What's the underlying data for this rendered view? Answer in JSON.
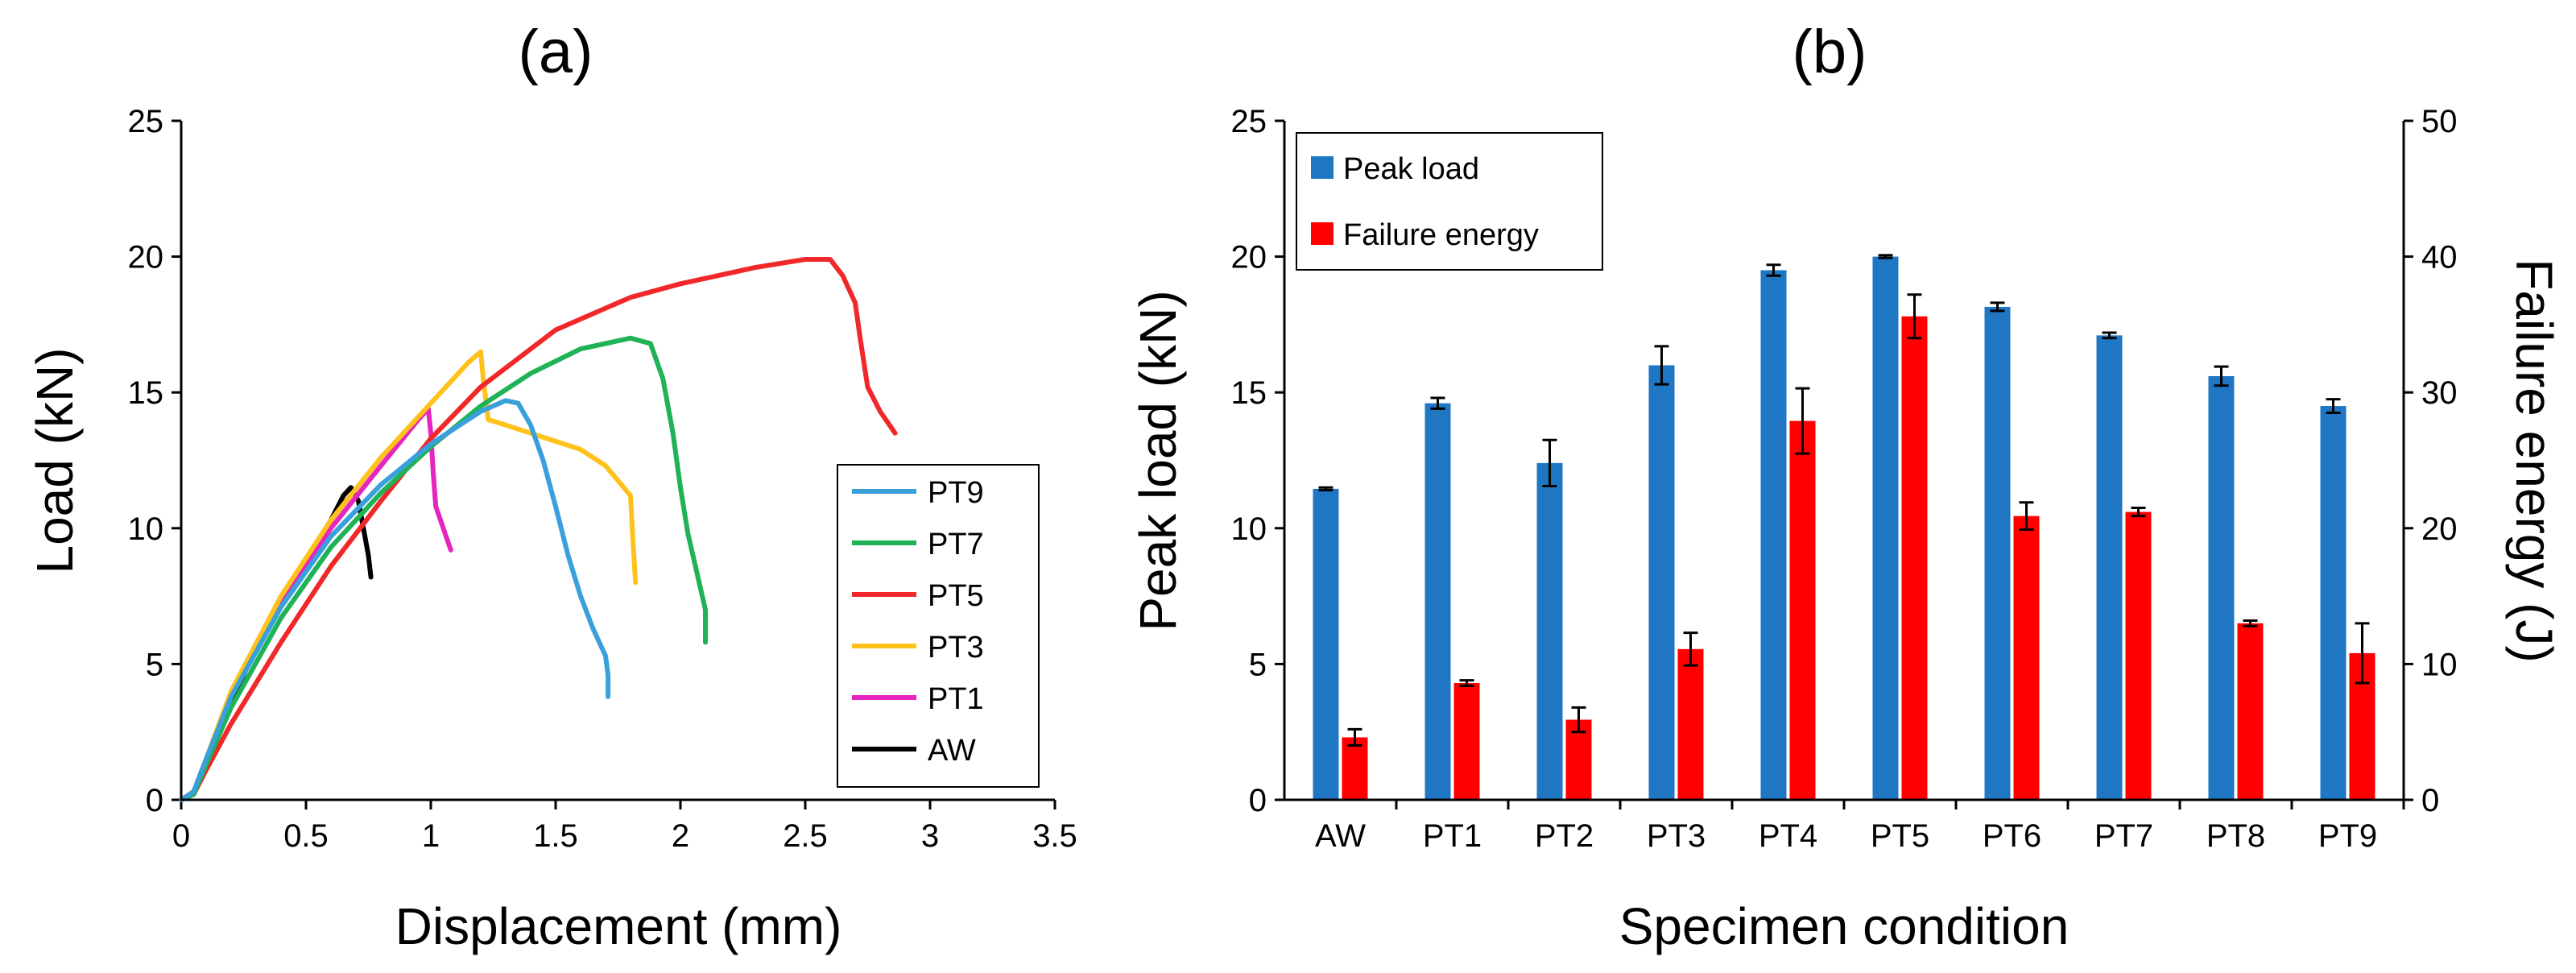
{
  "chart_data": [
    {
      "type": "line",
      "title": "(a)",
      "xlabel": "Displacement (mm)",
      "ylabel": "Load (kN)",
      "xlim": [
        0,
        3.5
      ],
      "ylim": [
        0,
        25
      ],
      "xticks": [
        0,
        0.5,
        1,
        1.5,
        2,
        2.5,
        3,
        3.5
      ],
      "xtick_labels": [
        "0",
        "0.5",
        "1",
        "1.5",
        "2",
        "2.5",
        "3",
        "3.5"
      ],
      "yticks": [
        0,
        5,
        10,
        15,
        20,
        25
      ],
      "ytick_labels": [
        "0",
        "5",
        "10",
        "15",
        "20",
        "25"
      ],
      "legend_position": "bottom-right",
      "series": [
        {
          "name": "PT9",
          "color": "#3aa0dc",
          "points": [
            [
              0,
              0
            ],
            [
              0.05,
              0.3
            ],
            [
              0.1,
              1.5
            ],
            [
              0.2,
              3.8
            ],
            [
              0.4,
              7.1
            ],
            [
              0.6,
              9.7
            ],
            [
              0.8,
              11.6
            ],
            [
              1.0,
              13.1
            ],
            [
              1.2,
              14.3
            ],
            [
              1.3,
              14.7
            ],
            [
              1.35,
              14.6
            ],
            [
              1.4,
              13.8
            ],
            [
              1.45,
              12.5
            ],
            [
              1.5,
              10.8
            ],
            [
              1.55,
              9.0
            ],
            [
              1.6,
              7.5
            ],
            [
              1.65,
              6.3
            ],
            [
              1.7,
              5.3
            ],
            [
              1.71,
              4.6
            ],
            [
              1.71,
              3.8
            ]
          ]
        },
        {
          "name": "PT7",
          "color": "#1fb256",
          "points": [
            [
              0,
              0
            ],
            [
              0.05,
              0.2
            ],
            [
              0.1,
              1.3
            ],
            [
              0.2,
              3.4
            ],
            [
              0.4,
              6.7
            ],
            [
              0.6,
              9.3
            ],
            [
              0.8,
              11.3
            ],
            [
              1.0,
              13.0
            ],
            [
              1.2,
              14.5
            ],
            [
              1.4,
              15.7
            ],
            [
              1.6,
              16.6
            ],
            [
              1.8,
              17.0
            ],
            [
              1.88,
              16.8
            ],
            [
              1.93,
              15.5
            ],
            [
              1.97,
              13.5
            ],
            [
              2.0,
              11.5
            ],
            [
              2.03,
              9.8
            ],
            [
              2.07,
              8.2
            ],
            [
              2.1,
              7.0
            ],
            [
              2.1,
              5.8
            ]
          ]
        },
        {
          "name": "PT5",
          "color": "#f0282a",
          "points": [
            [
              0,
              0
            ],
            [
              0.05,
              0.2
            ],
            [
              0.1,
              1.1
            ],
            [
              0.2,
              2.8
            ],
            [
              0.4,
              5.8
            ],
            [
              0.6,
              8.6
            ],
            [
              0.8,
              11.0
            ],
            [
              1.0,
              13.3
            ],
            [
              1.2,
              15.2
            ],
            [
              1.5,
              17.3
            ],
            [
              1.8,
              18.5
            ],
            [
              2.0,
              19.0
            ],
            [
              2.3,
              19.6
            ],
            [
              2.5,
              19.9
            ],
            [
              2.6,
              19.9
            ],
            [
              2.65,
              19.3
            ],
            [
              2.7,
              18.3
            ],
            [
              2.72,
              17.0
            ],
            [
              2.75,
              15.2
            ],
            [
              2.8,
              14.3
            ],
            [
              2.86,
              13.5
            ]
          ]
        },
        {
          "name": "PT3",
          "color": "#ffc21c",
          "points": [
            [
              0,
              0
            ],
            [
              0.05,
              0.3
            ],
            [
              0.1,
              1.5
            ],
            [
              0.2,
              4.0
            ],
            [
              0.4,
              7.5
            ],
            [
              0.6,
              10.3
            ],
            [
              0.8,
              12.6
            ],
            [
              1.0,
              14.6
            ],
            [
              1.15,
              16.1
            ],
            [
              1.2,
              16.5
            ],
            [
              1.21,
              15.5
            ],
            [
              1.23,
              14.0
            ],
            [
              1.3,
              13.8
            ],
            [
              1.4,
              13.5
            ],
            [
              1.5,
              13.2
            ],
            [
              1.6,
              12.9
            ],
            [
              1.7,
              12.3
            ],
            [
              1.8,
              11.2
            ],
            [
              1.81,
              9.5
            ],
            [
              1.82,
              8.0
            ]
          ]
        },
        {
          "name": "PT1",
          "color": "#e624bf",
          "points": [
            [
              0,
              0
            ],
            [
              0.05,
              0.3
            ],
            [
              0.1,
              1.5
            ],
            [
              0.2,
              3.9
            ],
            [
              0.4,
              7.3
            ],
            [
              0.6,
              10.0
            ],
            [
              0.8,
              12.3
            ],
            [
              0.95,
              14.0
            ],
            [
              0.99,
              14.4
            ],
            [
              1.0,
              13.5
            ],
            [
              1.01,
              12.0
            ],
            [
              1.02,
              10.8
            ],
            [
              1.05,
              10.0
            ],
            [
              1.08,
              9.2
            ]
          ]
        },
        {
          "name": "AW",
          "color": "#000000",
          "points": [
            [
              0,
              0
            ],
            [
              0.05,
              0.3
            ],
            [
              0.1,
              1.4
            ],
            [
              0.2,
              3.6
            ],
            [
              0.3,
              5.6
            ],
            [
              0.4,
              7.3
            ],
            [
              0.5,
              8.8
            ],
            [
              0.6,
              10.3
            ],
            [
              0.65,
              11.2
            ],
            [
              0.68,
              11.5
            ],
            [
              0.71,
              11.0
            ],
            [
              0.73,
              10.0
            ],
            [
              0.75,
              9.0
            ],
            [
              0.76,
              8.2
            ]
          ]
        }
      ]
    },
    {
      "type": "bar",
      "title": "(b)",
      "xlabel": "Specimen condition",
      "ylabel": "Peak load (kN)",
      "y2label": "Failure energy (J)",
      "ylim": [
        0,
        25
      ],
      "y2lim": [
        0,
        50
      ],
      "yticks": [
        0,
        5,
        10,
        15,
        20,
        25
      ],
      "ytick_labels": [
        "0",
        "5",
        "10",
        "15",
        "20",
        "25"
      ],
      "y2ticks": [
        0,
        10,
        20,
        30,
        40,
        50
      ],
      "y2tick_labels": [
        "0",
        "10",
        "20",
        "30",
        "40",
        "50"
      ],
      "legend_position": "top-left",
      "categories": [
        "AW",
        "PT1",
        "PT2",
        "PT3",
        "PT4",
        "PT5",
        "PT6",
        "PT7",
        "PT8",
        "PT9"
      ],
      "series": [
        {
          "name": "Peak load",
          "axis": "left",
          "color": "#1f77c4",
          "values": [
            11.45,
            14.6,
            12.4,
            16.0,
            19.5,
            20.0,
            18.15,
            17.1,
            15.6,
            14.5
          ],
          "errors": [
            0.05,
            0.2,
            0.85,
            0.7,
            0.2,
            0.05,
            0.15,
            0.1,
            0.35,
            0.25
          ]
        },
        {
          "name": "Failure energy",
          "axis": "right",
          "color": "#ff0000",
          "values": [
            4.6,
            8.6,
            5.9,
            11.1,
            27.9,
            35.6,
            20.9,
            21.2,
            13.0,
            10.8
          ],
          "errors": [
            0.6,
            0.2,
            0.9,
            1.2,
            2.4,
            1.6,
            1.0,
            0.3,
            0.2,
            2.2
          ]
        }
      ]
    }
  ]
}
